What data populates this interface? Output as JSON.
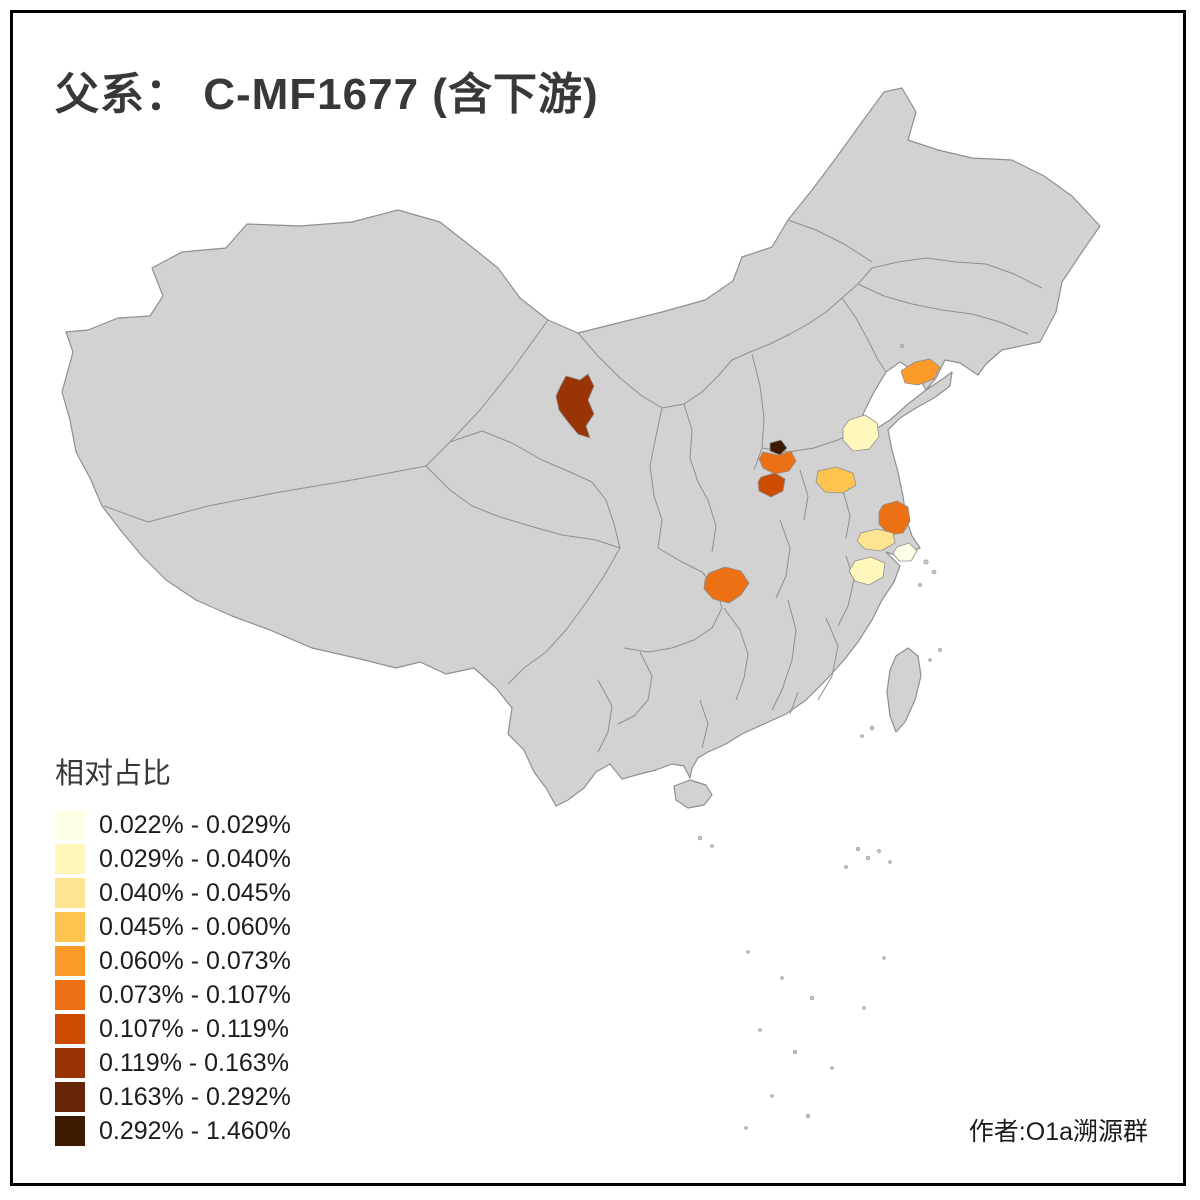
{
  "title": "父系： C-MF1677 (含下游)",
  "attribution": "作者:O1a溯源群",
  "legend": {
    "title": "相对占比",
    "classes": [
      {
        "color": "#FFFFE5",
        "label": "0.022% - 0.029%"
      },
      {
        "color": "#FFF7BC",
        "label": "0.029% - 0.040%"
      },
      {
        "color": "#FEE391",
        "label": "0.040% - 0.045%"
      },
      {
        "color": "#FEC44F",
        "label": "0.045% - 0.060%"
      },
      {
        "color": "#FB9A29",
        "label": "0.060% - 0.073%"
      },
      {
        "color": "#EC7014",
        "label": "0.073% - 0.107%"
      },
      {
        "color": "#CC4C02",
        "label": "0.107% - 0.119%"
      },
      {
        "color": "#993404",
        "label": "0.119% - 0.163%"
      },
      {
        "color": "#662506",
        "label": "0.163% - 0.292%"
      },
      {
        "color": "#3F1A03",
        "label": "0.292% - 1.460%"
      }
    ]
  },
  "map": {
    "base_fill": "#D2D2D2",
    "boundary_color": "#8F8F8F",
    "highlighted_regions": [
      {
        "id": "region-1",
        "color": "#993404",
        "legend_class": "0.119% - 0.163%"
      },
      {
        "id": "region-2",
        "color": "#3F1A03",
        "legend_class": "0.292% - 1.460%"
      },
      {
        "id": "region-3",
        "color": "#EC7014",
        "legend_class": "0.073% - 0.107%"
      },
      {
        "id": "region-4",
        "color": "#CC4C02",
        "legend_class": "0.107% - 0.119%"
      },
      {
        "id": "region-5",
        "color": "#FFF7BC",
        "legend_class": "0.029% - 0.040%"
      },
      {
        "id": "region-6",
        "color": "#FB9A29",
        "legend_class": "0.060% - 0.073%"
      },
      {
        "id": "region-7",
        "color": "#FEC44F",
        "legend_class": "0.045% - 0.060%"
      },
      {
        "id": "region-8",
        "color": "#EC7014",
        "legend_class": "0.073% - 0.107%"
      },
      {
        "id": "region-9",
        "color": "#FEE391",
        "legend_class": "0.040% - 0.045%"
      },
      {
        "id": "region-10",
        "color": "#FFFFE5",
        "legend_class": "0.022% - 0.029%"
      },
      {
        "id": "region-11",
        "color": "#FFF7BC",
        "legend_class": "0.029% - 0.040%"
      },
      {
        "id": "region-12",
        "color": "#EC7014",
        "legend_class": "0.073% - 0.107%"
      }
    ]
  }
}
